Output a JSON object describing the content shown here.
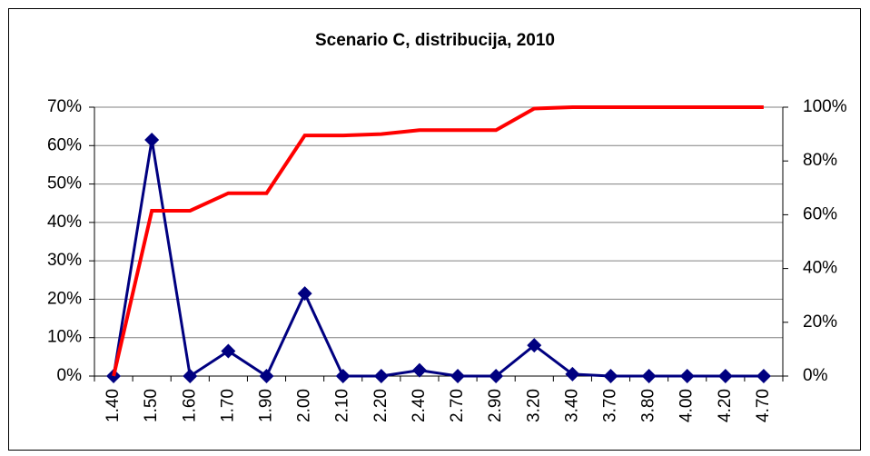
{
  "chart_data": {
    "type": "line",
    "title": "Scenario C, distribucija, 2010",
    "categories": [
      "1.40",
      "1.50",
      "1.60",
      "1.70",
      "1.90",
      "2.00",
      "2.10",
      "2.20",
      "2.40",
      "2.70",
      "2.90",
      "3.20",
      "3.40",
      "3.70",
      "3.80",
      "4.00",
      "4.20",
      "4.70"
    ],
    "series": [
      {
        "color": "#000080",
        "marker": "diamond",
        "values": [
          0,
          61.5,
          0,
          6.5,
          0,
          21.5,
          0,
          0,
          1.5,
          0,
          0,
          8,
          0.5,
          0,
          0,
          0,
          0,
          0
        ]
      },
      {
        "color": "#ff0000",
        "axis": "y2",
        "values": [
          0,
          61.5,
          61.5,
          68,
          68,
          89.5,
          89.5,
          90,
          91.5,
          91.5,
          91.5,
          99.5,
          100,
          100,
          100,
          100,
          100,
          100
        ]
      }
    ],
    "ylim": [
      0,
      70
    ],
    "yticks": [
      {
        "value": 0,
        "label": "0%"
      },
      {
        "value": 10,
        "label": "10%"
      },
      {
        "value": 20,
        "label": "20%"
      },
      {
        "value": 30,
        "label": "30%"
      },
      {
        "value": 40,
        "label": "40%"
      },
      {
        "value": 50,
        "label": "50%"
      },
      {
        "value": 60,
        "label": "60%"
      },
      {
        "value": 70,
        "label": "70%"
      }
    ],
    "y2lim": [
      0,
      100
    ],
    "y2ticks": [
      {
        "value": 0,
        "label": "0%"
      },
      {
        "value": 20,
        "label": "20%"
      },
      {
        "value": 40,
        "label": "40%"
      },
      {
        "value": 60,
        "label": "60%"
      },
      {
        "value": 80,
        "label": "80%"
      },
      {
        "value": 100,
        "label": "100%"
      }
    ],
    "grid": true
  }
}
